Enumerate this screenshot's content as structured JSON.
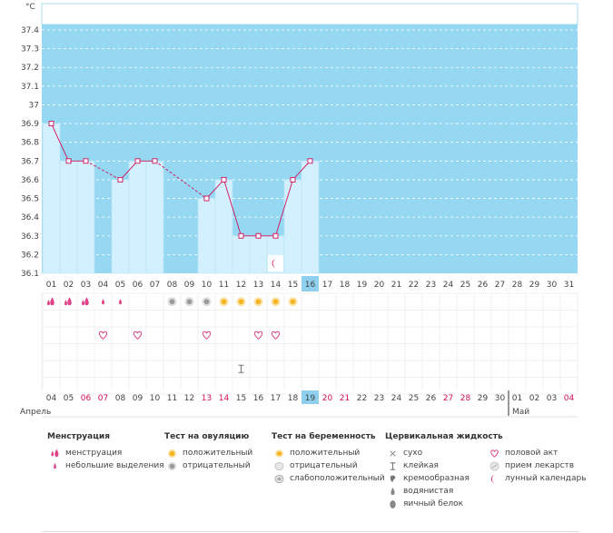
{
  "unit_label": "°C",
  "chart_data": {
    "type": "line",
    "y_ticks": [
      "37.4",
      "37.3",
      "37.2",
      "37.1",
      "37",
      "36.9",
      "36.8",
      "36.7",
      "36.6",
      "36.5",
      "36.4",
      "36.3",
      "36.2",
      "36.1"
    ],
    "ylim": [
      36.1,
      37.4
    ],
    "cycle_days": [
      "01",
      "02",
      "03",
      "04",
      "05",
      "06",
      "07",
      "08",
      "09",
      "10",
      "11",
      "12",
      "13",
      "14",
      "15",
      "16",
      "17",
      "18",
      "19",
      "20",
      "21",
      "22",
      "23",
      "24",
      "25",
      "26",
      "27",
      "28",
      "29",
      "30",
      "31"
    ],
    "current_cycle_day": "16",
    "temperatures": [
      36.9,
      36.7,
      36.7,
      null,
      36.6,
      36.7,
      36.7,
      null,
      null,
      36.5,
      36.6,
      36.3,
      36.3,
      36.3,
      36.6,
      36.7,
      null,
      null,
      null,
      null,
      null,
      null,
      null,
      null,
      null,
      null,
      null,
      null,
      null,
      null,
      null
    ],
    "dates": [
      "04",
      "05",
      "06",
      "07",
      "08",
      "09",
      "10",
      "11",
      "12",
      "13",
      "14",
      "15",
      "16",
      "17",
      "18",
      "19",
      "20",
      "21",
      "22",
      "23",
      "24",
      "25",
      "26",
      "27",
      "28",
      "29",
      "30",
      "01",
      "02",
      "03",
      "04"
    ],
    "weekend_dates_index": [
      2,
      3,
      9,
      10,
      16,
      17,
      23,
      24,
      30
    ],
    "today_date_index": 15,
    "months": [
      {
        "label": "Апрель",
        "start_index": 0
      },
      {
        "label": "Май",
        "start_index": 27
      }
    ],
    "markers": {
      "menstruation": [
        "heavy",
        "heavy",
        "heavy",
        "light",
        "light",
        null,
        null,
        null,
        null,
        null,
        null,
        null,
        null,
        null,
        null,
        null
      ],
      "ovulation_test": [
        null,
        null,
        null,
        null,
        null,
        null,
        null,
        "negative",
        "negative",
        "negative",
        "positive",
        "positive",
        "positive",
        "positive",
        "positive",
        null
      ],
      "intercourse": [
        null,
        null,
        null,
        "yes",
        null,
        "yes",
        null,
        null,
        null,
        "yes",
        null,
        null,
        "yes",
        "yes",
        null,
        null
      ],
      "cervical_fluid": [
        null,
        null,
        null,
        null,
        null,
        null,
        null,
        null,
        null,
        null,
        null,
        "sticky",
        null,
        null,
        null,
        null
      ],
      "lunar": [
        null,
        null,
        null,
        null,
        null,
        null,
        null,
        null,
        null,
        null,
        null,
        null,
        null,
        "yes",
        null,
        null
      ]
    }
  },
  "colors": {
    "background": "#96d8f2",
    "bar": "#d2f0fd",
    "line": "#d0105a",
    "weekend": "#d0105a",
    "today": "#8ed0ee"
  },
  "legend": {
    "menstruation": {
      "title": "Менструация",
      "items": [
        {
          "icon": "drops-icon",
          "label": "менструация"
        },
        {
          "icon": "drop-icon",
          "label": "небольшие выделения"
        }
      ]
    },
    "ovulation": {
      "title": "Тест на овуляцию",
      "items": [
        {
          "icon": "positive-ovulation-icon",
          "label": "положительный"
        },
        {
          "icon": "negative-ovulation-icon",
          "label": "отрицательный"
        }
      ]
    },
    "pregnancy": {
      "title": "Тест на беременность",
      "items": [
        {
          "icon": "positive-pregnancy-icon",
          "label": "положительный"
        },
        {
          "icon": "negative-pregnancy-icon",
          "label": "отрицательный"
        },
        {
          "icon": "weak-pregnancy-icon",
          "label": "слабоположительный"
        }
      ]
    },
    "cervical": {
      "title": "Цервикальная жидкость",
      "items": [
        {
          "icon": "dry-icon",
          "label": "сухо"
        },
        {
          "icon": "sticky-icon",
          "label": "клейкая"
        },
        {
          "icon": "creamy-icon",
          "label": "кремообразная"
        },
        {
          "icon": "watery-icon",
          "label": "водянистая"
        },
        {
          "icon": "eggwhite-icon",
          "label": "яичный белок"
        }
      ]
    },
    "other": {
      "items": [
        {
          "icon": "heart-icon",
          "label": "половой акт"
        },
        {
          "icon": "pill-icon",
          "label": "прием лекарств"
        },
        {
          "icon": "moon-icon",
          "label": "лунный календарь"
        }
      ]
    }
  }
}
